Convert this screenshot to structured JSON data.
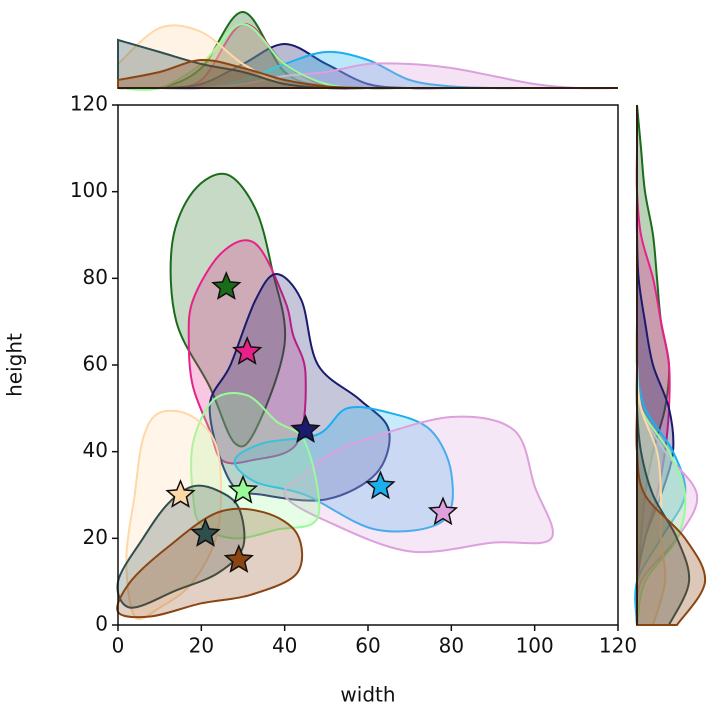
{
  "chart_data": {
    "type": "jointplot",
    "xlabel": "width",
    "ylabel": "height",
    "xlim": [
      0,
      120
    ],
    "ylim": [
      0,
      120
    ],
    "xticks": [
      0,
      20,
      40,
      60,
      80,
      100,
      120
    ],
    "yticks": [
      0,
      20,
      40,
      60,
      80,
      100,
      120
    ],
    "x_grid": [
      0,
      10,
      20,
      30,
      40,
      50,
      60,
      70,
      80,
      90,
      100,
      110,
      120
    ],
    "y_grid": [
      0,
      10,
      20,
      30,
      40,
      50,
      60,
      70,
      80,
      90,
      100,
      110,
      120
    ],
    "series": [
      {
        "color": "#1a6b1a",
        "x": 26,
        "y": 78,
        "contour_x": [
          26,
          33,
          37,
          40,
          33,
          28,
          22,
          14,
          13,
          18
        ],
        "contour_y": [
          104,
          96,
          82,
          65,
          45,
          42,
          55,
          70,
          88,
          100
        ],
        "x_density": [
          0,
          0,
          0.25,
          0.95,
          0.2,
          0.02,
          0,
          0,
          0,
          0,
          0,
          0,
          0
        ],
        "y_density": [
          0,
          0,
          0.05,
          0.1,
          0.2,
          0.35,
          0.4,
          0.3,
          0.25,
          0.2,
          0.1,
          0.05,
          0
        ]
      },
      {
        "color": "#e8208a",
        "x": 31,
        "y": 63,
        "contour_x": [
          33,
          40,
          42,
          45,
          43,
          32,
          25,
          22,
          18,
          17,
          18,
          25
        ],
        "contour_y": [
          88,
          75,
          67,
          58,
          42,
          38,
          38,
          45,
          55,
          65,
          75,
          86
        ],
        "x_density": [
          0,
          0,
          0.1,
          0.8,
          0.3,
          0.02,
          0,
          0,
          0,
          0,
          0,
          0,
          0
        ],
        "y_density": [
          0,
          0,
          0.1,
          0.25,
          0.35,
          0.4,
          0.4,
          0.3,
          0.2,
          0.05,
          0,
          0,
          0
        ]
      },
      {
        "color": "#1a1a6e",
        "x": 45,
        "y": 45,
        "contour_x": [
          38,
          44,
          48,
          58,
          65,
          62,
          50,
          35,
          27,
          22,
          27,
          33
        ],
        "contour_y": [
          81,
          75,
          60,
          52,
          45,
          35,
          29,
          30,
          33,
          50,
          60,
          75
        ],
        "x_density": [
          0,
          0,
          0.05,
          0.3,
          0.55,
          0.3,
          0.05,
          0,
          0,
          0,
          0,
          0,
          0
        ],
        "y_density": [
          0,
          0,
          0.1,
          0.3,
          0.45,
          0.4,
          0.2,
          0.1,
          0.02,
          0,
          0,
          0,
          0
        ]
      },
      {
        "color": "#1ab0f0",
        "x": 63,
        "y": 32,
        "contour_x": [
          55,
          65,
          75,
          80,
          78,
          62,
          45,
          33,
          28,
          35,
          48
        ],
        "contour_y": [
          50,
          49,
          45,
          35,
          24,
          22,
          30,
          33,
          38,
          42,
          44
        ],
        "x_density": [
          0,
          0,
          0,
          0.1,
          0.3,
          0.45,
          0.35,
          0.1,
          0.02,
          0,
          0,
          0,
          0
        ],
        "y_density": [
          0,
          0,
          0.3,
          0.6,
          0.45,
          0.1,
          0,
          0,
          0,
          0,
          0,
          0,
          0
        ]
      },
      {
        "color": "#dda0dd",
        "x": 78,
        "y": 26,
        "contour_x": [
          60,
          80,
          95,
          100,
          104,
          90,
          70,
          50,
          40,
          45,
          52
        ],
        "contour_y": [
          43,
          48,
          45,
          32,
          20,
          19,
          17,
          24,
          30,
          35,
          40
        ],
        "x_density": [
          0,
          0,
          0,
          0.05,
          0.15,
          0.2,
          0.3,
          0.3,
          0.25,
          0.15,
          0.05,
          0,
          0
        ],
        "y_density": [
          0,
          0.05,
          0.5,
          0.75,
          0.35,
          0.05,
          0,
          0,
          0,
          0,
          0,
          0,
          0
        ]
      },
      {
        "color": "#98fb98",
        "x": 30,
        "y": 31,
        "contour_x": [
          23,
          31,
          38,
          45,
          48,
          38,
          28,
          20,
          18,
          18
        ],
        "contour_y": [
          52,
          53,
          47,
          42,
          25,
          22,
          20,
          23,
          30,
          42
        ],
        "x_density": [
          0,
          0,
          0.3,
          0.8,
          0.3,
          0.05,
          0,
          0,
          0,
          0,
          0,
          0,
          0
        ],
        "y_density": [
          0,
          0.1,
          0.5,
          0.6,
          0.4,
          0.05,
          0,
          0,
          0,
          0,
          0,
          0,
          0
        ]
      },
      {
        "color": "#ffd8a8",
        "x": 15,
        "y": 30,
        "contour_x": [
          10,
          18,
          24,
          24,
          18,
          10,
          4,
          2,
          4,
          6
        ],
        "contour_y": [
          49,
          48,
          40,
          22,
          10,
          4,
          2,
          15,
          30,
          43
        ],
        "x_density": [
          0.3,
          0.75,
          0.7,
          0.3,
          0.05,
          0,
          0,
          0,
          0,
          0,
          0,
          0,
          0
        ],
        "y_density": [
          0.2,
          0.35,
          0.3,
          0.3,
          0.25,
          0.05,
          0,
          0,
          0,
          0,
          0,
          0,
          0
        ]
      },
      {
        "color": "#2f4f4f",
        "x": 21,
        "y": 21,
        "contour_x": [
          18,
          24,
          29,
          30,
          24,
          14,
          3,
          0,
          6,
          12
        ],
        "contour_y": [
          32,
          31,
          27,
          18,
          12,
          8,
          4,
          10,
          20,
          28
        ],
        "x_density": [
          0.6,
          0.45,
          0.3,
          0.2,
          0.05,
          0,
          0,
          0,
          0,
          0,
          0,
          0,
          0
        ],
        "y_density": [
          0.4,
          0.65,
          0.5,
          0.2,
          0.05,
          0,
          0,
          0,
          0,
          0,
          0,
          0,
          0
        ]
      },
      {
        "color": "#8b4513",
        "x": 29,
        "y": 15,
        "contour_x": [
          24,
          35,
          43,
          43,
          32,
          20,
          8,
          0,
          3,
          12
        ],
        "contour_y": [
          26,
          26,
          21,
          12,
          7,
          5,
          2,
          3,
          10,
          18
        ],
        "x_density": [
          0.1,
          0.2,
          0.35,
          0.25,
          0.1,
          0.02,
          0,
          0,
          0,
          0,
          0,
          0,
          0
        ],
        "y_density": [
          0.5,
          0.85,
          0.6,
          0.1,
          0,
          0,
          0,
          0,
          0,
          0,
          0,
          0,
          0
        ]
      }
    ]
  }
}
